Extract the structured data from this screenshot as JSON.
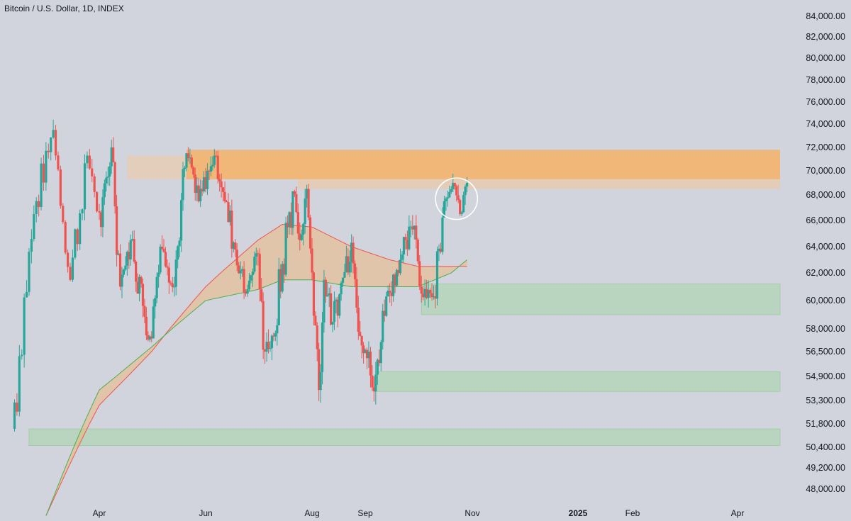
{
  "title": "Bitcoin / U.S. Dollar, 1D, INDEX",
  "chart_data": {
    "type": "candlestick",
    "title": "Bitcoin / U.S. Dollar, 1D, INDEX",
    "y_axis_position": "right",
    "ylim": [
      46500,
      85000
    ],
    "y_ticks": [
      {
        "value": 84000,
        "label": "84,000.00"
      },
      {
        "value": 82000,
        "label": "82,000.00"
      },
      {
        "value": 80000,
        "label": "80,000.00"
      },
      {
        "value": 78000,
        "label": "78,000.00"
      },
      {
        "value": 76000,
        "label": "76,000.00"
      },
      {
        "value": 74000,
        "label": "74,000.00"
      },
      {
        "value": 72000,
        "label": "72,000.00"
      },
      {
        "value": 70000,
        "label": "70,000.00"
      },
      {
        "value": 68000,
        "label": "68,000.00"
      },
      {
        "value": 66000,
        "label": "66,000.00"
      },
      {
        "value": 64000,
        "label": "64,000.00"
      },
      {
        "value": 62000,
        "label": "62,000.00"
      },
      {
        "value": 60000,
        "label": "60,000.00"
      },
      {
        "value": 58000,
        "label": "58,000.00"
      },
      {
        "value": 56500,
        "label": "56,500.00"
      },
      {
        "value": 54900,
        "label": "54,900.00"
      },
      {
        "value": 53300,
        "label": "53,300.00"
      },
      {
        "value": 51800,
        "label": "51,800.00"
      },
      {
        "value": 50400,
        "label": "50,400.00"
      },
      {
        "value": 49200,
        "label": "49,200.00"
      },
      {
        "value": 48000,
        "label": "48,000.00"
      }
    ],
    "x_ticks": [
      {
        "label": "Apr",
        "date": "2024-04-01",
        "bold": false
      },
      {
        "label": "Jun",
        "date": "2024-06-01",
        "bold": false
      },
      {
        "label": "Aug",
        "date": "2024-08-01",
        "bold": false
      },
      {
        "label": "Sep",
        "date": "2024-09-01",
        "bold": false
      },
      {
        "label": "Nov",
        "date": "2024-11-01",
        "bold": false
      },
      {
        "label": "2025",
        "date": "2025-01-01",
        "bold": true
      },
      {
        "label": "Feb",
        "date": "2025-02-01",
        "bold": false
      },
      {
        "label": "Apr",
        "date": "2025-04-01",
        "bold": false
      }
    ],
    "up_color": "#26a69a",
    "down_color": "#ef5350",
    "swing_points": [
      [
        "2024-02-25",
        51500
      ],
      [
        "2024-03-05",
        66500
      ],
      [
        "2024-03-13",
        73500
      ],
      [
        "2024-03-20",
        61500
      ],
      [
        "2024-03-27",
        71300
      ],
      [
        "2024-04-02",
        65500
      ],
      [
        "2024-04-08",
        72000
      ],
      [
        "2024-04-13",
        61000
      ],
      [
        "2024-04-19",
        64500
      ],
      [
        "2024-04-30",
        57500
      ],
      [
        "2024-05-06",
        64000
      ],
      [
        "2024-05-14",
        61000
      ],
      [
        "2024-05-21",
        71500
      ],
      [
        "2024-05-28",
        67500
      ],
      [
        "2024-06-06",
        71300
      ],
      [
        "2024-06-12",
        67500
      ],
      [
        "2024-06-24",
        60500
      ],
      [
        "2024-06-30",
        63500
      ],
      [
        "2024-07-05",
        56500
      ],
      [
        "2024-07-10",
        57500
      ],
      [
        "2024-07-21",
        68300
      ],
      [
        "2024-07-25",
        64500
      ],
      [
        "2024-07-29",
        68500
      ],
      [
        "2024-08-05",
        54000
      ],
      [
        "2024-08-08",
        61500
      ],
      [
        "2024-08-13",
        58500
      ],
      [
        "2024-08-24",
        64300
      ],
      [
        "2024-08-27",
        59500
      ],
      [
        "2024-09-06",
        53900
      ],
      [
        "2024-09-13",
        60300
      ],
      [
        "2024-09-29",
        65600
      ],
      [
        "2024-10-03",
        60500
      ],
      [
        "2024-10-10",
        60300
      ],
      [
        "2024-10-16",
        67500
      ],
      [
        "2024-10-21",
        69000
      ],
      [
        "2024-10-25",
        66500
      ],
      [
        "2024-10-29",
        69000
      ]
    ],
    "moving_averages": [
      {
        "color": "#ef5350",
        "points": [
          [
            "2024-03-10",
            46500
          ],
          [
            "2024-04-01",
            53000
          ],
          [
            "2024-05-01",
            56500
          ],
          [
            "2024-06-01",
            61000
          ],
          [
            "2024-07-01",
            64500
          ],
          [
            "2024-07-15",
            65700
          ],
          [
            "2024-08-01",
            65500
          ],
          [
            "2024-08-24",
            64000
          ],
          [
            "2024-09-15",
            63000
          ],
          [
            "2024-10-01",
            62500
          ],
          [
            "2024-10-20",
            62500
          ],
          [
            "2024-10-29",
            62500
          ]
        ]
      },
      {
        "color": "#4caf50",
        "points": [
          [
            "2024-03-10",
            46500
          ],
          [
            "2024-04-01",
            54000
          ],
          [
            "2024-05-01",
            56800
          ],
          [
            "2024-06-01",
            60000
          ],
          [
            "2024-07-01",
            60800
          ],
          [
            "2024-07-15",
            61500
          ],
          [
            "2024-08-01",
            61500
          ],
          [
            "2024-08-24",
            61000
          ],
          [
            "2024-09-15",
            61000
          ],
          [
            "2024-10-01",
            61000
          ],
          [
            "2024-10-20",
            62000
          ],
          [
            "2024-10-29",
            63000
          ]
        ]
      }
    ],
    "ma_fill_color": "#f3b36c",
    "zones": [
      {
        "type": "resistance",
        "from_date": "2024-04-17",
        "y_low": 69300,
        "y_high": 71300,
        "color": "#f0c8a0",
        "opacity": 0.55
      },
      {
        "type": "resistance",
        "from_date": "2024-05-21",
        "y_low": 69300,
        "y_high": 71800,
        "color": "#f3b36c",
        "opacity": 0.85
      },
      {
        "type": "resistance",
        "from_date": "2024-07-24",
        "y_low": 68500,
        "y_high": 69300,
        "color": "#f3c59a",
        "opacity": 0.55
      },
      {
        "type": "support",
        "from_date": "2024-10-03",
        "y_low": 59000,
        "y_high": 61200,
        "color": "#a5d6a7",
        "opacity": 0.55
      },
      {
        "type": "support",
        "from_date": "2024-09-07",
        "y_low": 53900,
        "y_high": 55200,
        "color": "#a5d6a7",
        "opacity": 0.55
      },
      {
        "type": "support",
        "from_date": "2024-03-03",
        "y_low": 50500,
        "y_high": 51500,
        "color": "#a5d6a7",
        "opacity": 0.55
      }
    ],
    "highlight_ellipse": {
      "center_date": "2024-10-23",
      "center_y": 67700,
      "rx_days": 12,
      "ry_value": 1700,
      "color": "#ffffff"
    }
  }
}
